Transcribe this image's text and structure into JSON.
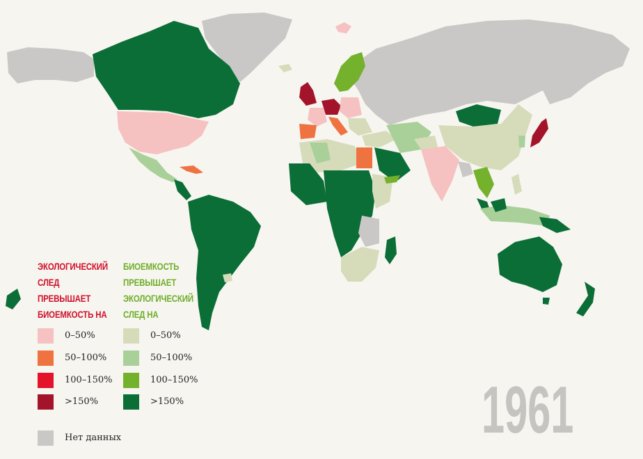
{
  "year": "1961",
  "colors": {
    "background": "#f7f5f0",
    "deficit_0_50": "#f6c1c1",
    "deficit_50_100": "#ee7340",
    "deficit_100_150": "#e2132a",
    "deficit_150_plus": "#a3142a",
    "reserve_0_50": "#d6dcba",
    "reserve_50_100": "#aad09a",
    "reserve_100_150": "#74b12d",
    "reserve_150_plus": "#0b6e36",
    "no_data": "#c9c8c6"
  },
  "legend": {
    "deficit_title": [
      "ЭКОЛОГИЧЕСКИЙ",
      "СЛЕД",
      "ПРЕВЫШАЕТ",
      "БИОЕМКОСТЬ НА"
    ],
    "reserve_title": [
      "БИОЕМКОСТЬ",
      "ПРЕВЫШАЕТ",
      "ЭКОЛОГИЧЕСКИЙ",
      "СЛЕД НА"
    ],
    "deficit_items": [
      {
        "label": "0–50%",
        "color": "#f6c1c1"
      },
      {
        "label": "50–100%",
        "color": "#ee7340"
      },
      {
        "label": "100–150%",
        "color": "#e2132a"
      },
      {
        "label": ">150%",
        "color": "#a3142a"
      }
    ],
    "reserve_items": [
      {
        "label": "0–50%",
        "color": "#d6dcba"
      },
      {
        "label": "50–100%",
        "color": "#aad09a"
      },
      {
        "label": "100–150%",
        "color": "#74b12d"
      },
      {
        "label": ">150%",
        "color": "#0b6e36"
      }
    ],
    "no_data": {
      "label": "Нет данных",
      "color": "#c9c8c6"
    }
  }
}
